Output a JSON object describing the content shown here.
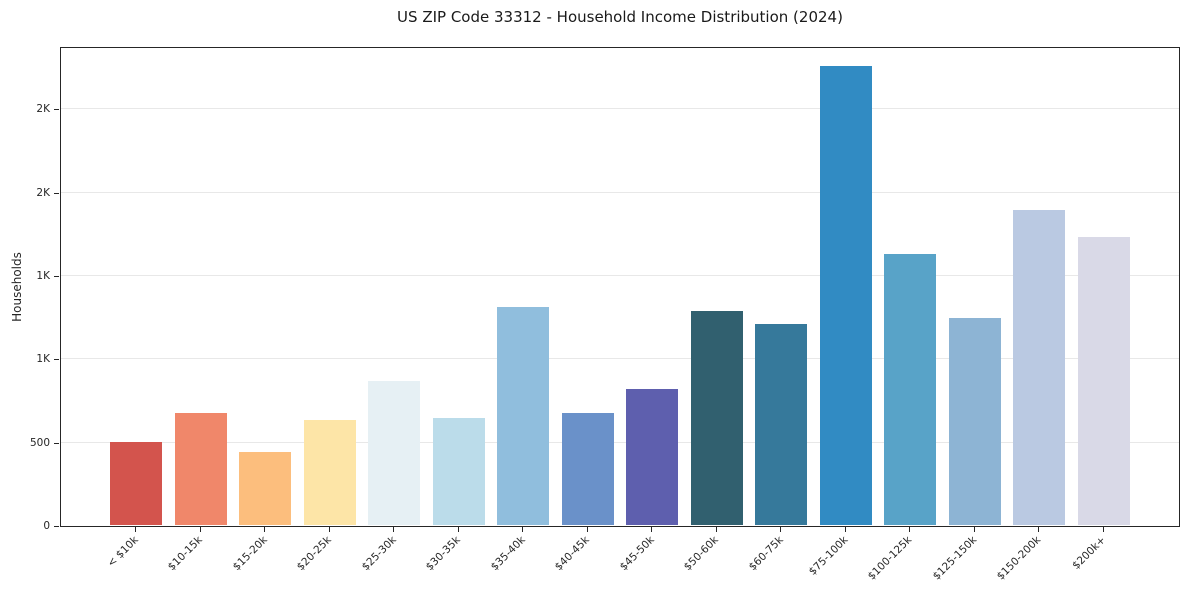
{
  "header": {
    "title": "US ZIP Code 33312 - Household Income Distribution (2024)"
  },
  "chart_data": {
    "type": "bar",
    "title": "US ZIP Code 33312 - Household Income Distribution (2024)",
    "xlabel": "",
    "ylabel": "Households",
    "categories": [
      "< $10k",
      "$10-15k",
      "$15-20k",
      "$20-25k",
      "$25-30k",
      "$30-35k",
      "$35-40k",
      "$40-45k",
      "$45-50k",
      "$50-60k",
      "$60-75k",
      "$75-100k",
      "$100-125k",
      "$125-150k",
      "$150-200k",
      "$200k+"
    ],
    "values": [
      498,
      670,
      438,
      628,
      862,
      641,
      1308,
      672,
      815,
      1283,
      1205,
      2752,
      1625,
      1240,
      1888,
      1727
    ],
    "bar_colors": [
      "#d3544d",
      "#f0876a",
      "#fcbe7d",
      "#fde5a7",
      "#e6f0f4",
      "#bbdcea",
      "#90bedd",
      "#6a91c9",
      "#5e5fae",
      "#31606f",
      "#36799b",
      "#318bc3",
      "#58a3c8",
      "#8db4d4",
      "#bac9e2",
      "#d9d9e7"
    ],
    "ylim": [
      0,
      2880
    ],
    "yticks": [
      {
        "value": 0,
        "label": "0"
      },
      {
        "value": 500,
        "label": "500"
      },
      {
        "value": 1000,
        "label": "1K"
      },
      {
        "value": 1500,
        "label": "1K"
      },
      {
        "value": 2000,
        "label": "2K"
      },
      {
        "value": 2500,
        "label": "2K"
      }
    ],
    "grid": "horizontal",
    "legend": "none",
    "colors": {
      "background": "#ffffff",
      "spine": "#262626",
      "gridline": "#e8e8e8",
      "text": "#262626"
    }
  }
}
